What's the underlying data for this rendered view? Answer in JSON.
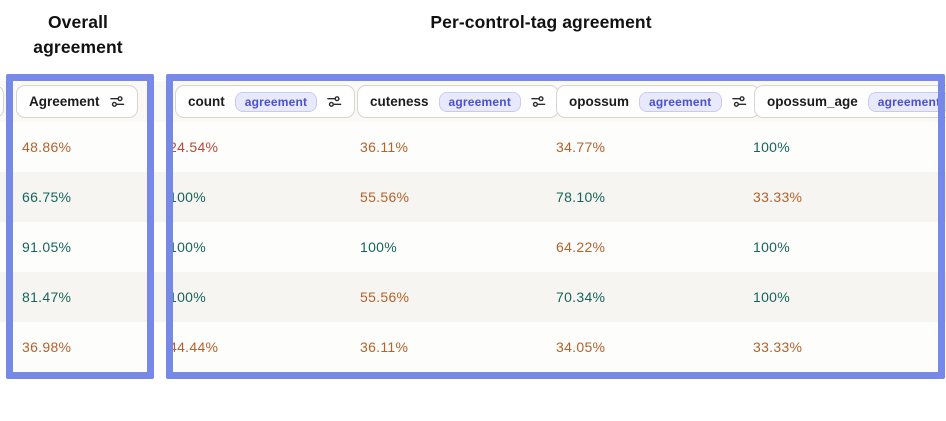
{
  "titles": {
    "overall": "Overall agreement",
    "per_control_tag": "Per-control-tag agreement"
  },
  "palette": {
    "highlight_border": "#7688e8",
    "value_low": "#b9473a",
    "value_mid": "#b4622c",
    "value_high": "#17655a",
    "badge_bg": "#e9e9fc",
    "badge_border": "#c9caf4",
    "badge_text": "#4a50ce",
    "header_pill_bg": "#ffffff",
    "header_pill_border": "#d6d5d1"
  },
  "icons": {
    "column_settings": "sliders-icon"
  },
  "columns": [
    {
      "label": "Agreement",
      "badge": "",
      "has_icon": true
    },
    {
      "label": "count",
      "badge": "agreement",
      "has_icon": true
    },
    {
      "label": "cuteness",
      "badge": "agreement",
      "has_icon": true
    },
    {
      "label": "opossum",
      "badge": "agreement",
      "has_icon": true
    },
    {
      "label": "opossum_age",
      "badge": "agreement",
      "has_icon": false
    }
  ],
  "rows": [
    [
      {
        "value": "48.86%",
        "tone": "mid"
      },
      {
        "value": "24.54%",
        "tone": "low"
      },
      {
        "value": "36.11%",
        "tone": "mid"
      },
      {
        "value": "34.77%",
        "tone": "mid"
      },
      {
        "value": "100%",
        "tone": "high"
      }
    ],
    [
      {
        "value": "66.75%",
        "tone": "high"
      },
      {
        "value": "100%",
        "tone": "high"
      },
      {
        "value": "55.56%",
        "tone": "mid"
      },
      {
        "value": "78.10%",
        "tone": "high"
      },
      {
        "value": "33.33%",
        "tone": "mid"
      }
    ],
    [
      {
        "value": "91.05%",
        "tone": "high"
      },
      {
        "value": "100%",
        "tone": "high"
      },
      {
        "value": "100%",
        "tone": "high"
      },
      {
        "value": "64.22%",
        "tone": "mid"
      },
      {
        "value": "100%",
        "tone": "high"
      }
    ],
    [
      {
        "value": "81.47%",
        "tone": "high"
      },
      {
        "value": "100%",
        "tone": "high"
      },
      {
        "value": "55.56%",
        "tone": "mid"
      },
      {
        "value": "70.34%",
        "tone": "high"
      },
      {
        "value": "100%",
        "tone": "high"
      }
    ],
    [
      {
        "value": "36.98%",
        "tone": "mid"
      },
      {
        "value": "44.44%",
        "tone": "mid"
      },
      {
        "value": "36.11%",
        "tone": "mid"
      },
      {
        "value": "34.05%",
        "tone": "mid"
      },
      {
        "value": "33.33%",
        "tone": "mid"
      }
    ]
  ]
}
